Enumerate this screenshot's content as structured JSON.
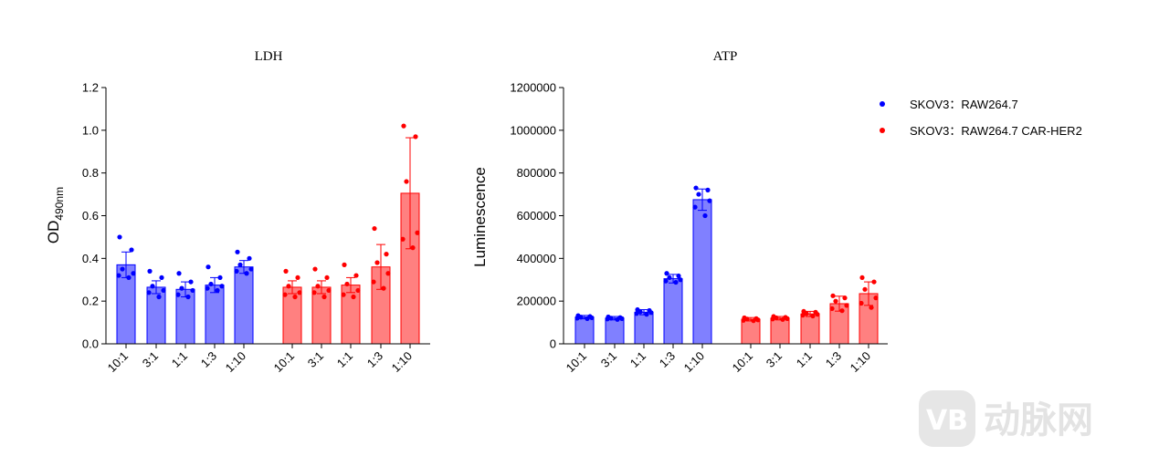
{
  "legend": [
    {
      "label": "SKOV3：RAW264.7",
      "color": "#0000ff"
    },
    {
      "label": "SKOV3：RAW264.7 CAR-HER2",
      "color": "#ff0000"
    }
  ],
  "watermark": {
    "text": "动脉网",
    "logo_text": "VB"
  },
  "chart_data": [
    {
      "type": "bar",
      "title": "LDH",
      "ylabel_main": "OD",
      "ylabel_sub": "490nm",
      "xlabel": "",
      "ylim": [
        0,
        1.2
      ],
      "yticks": [
        "0.0",
        "0.2",
        "0.4",
        "0.6",
        "0.8",
        "1.0",
        "1.2"
      ],
      "ytick_values": [
        0,
        0.2,
        0.4,
        0.6,
        0.8,
        1.0,
        1.2
      ],
      "categories": [
        "10:1",
        "3:1",
        "1:1",
        "1:3",
        "1:10"
      ],
      "series": [
        {
          "name": "SKOV3：RAW264.7",
          "bar_color": "#8080ff",
          "edge_color": "#0000ff",
          "values": [
            0.37,
            0.265,
            0.255,
            0.275,
            0.36
          ],
          "sd": [
            0.06,
            0.03,
            0.035,
            0.035,
            0.03
          ],
          "points": [
            [
              0.5,
              0.44,
              0.35,
              0.33,
              0.32,
              0.31
            ],
            [
              0.34,
              0.31,
              0.27,
              0.25,
              0.24,
              0.22
            ],
            [
              0.33,
              0.29,
              0.26,
              0.25,
              0.23,
              0.22
            ],
            [
              0.36,
              0.31,
              0.28,
              0.27,
              0.26,
              0.25
            ],
            [
              0.43,
              0.4,
              0.37,
              0.35,
              0.34,
              0.33
            ]
          ]
        },
        {
          "name": "SKOV3：RAW264.7 CAR-HER2",
          "bar_color": "#ff8080",
          "edge_color": "#ff0000",
          "values": [
            0.265,
            0.265,
            0.275,
            0.36,
            0.705
          ],
          "sd": [
            0.03,
            0.03,
            0.035,
            0.105,
            0.26
          ],
          "points": [
            [
              0.34,
              0.31,
              0.27,
              0.24,
              0.23,
              0.22
            ],
            [
              0.35,
              0.31,
              0.27,
              0.25,
              0.24,
              0.22
            ],
            [
              0.37,
              0.32,
              0.28,
              0.25,
              0.23,
              0.22
            ],
            [
              0.54,
              0.42,
              0.38,
              0.33,
              0.29,
              0.26
            ],
            [
              1.02,
              0.97,
              0.76,
              0.52,
              0.49,
              0.45
            ]
          ]
        }
      ]
    },
    {
      "type": "bar",
      "title": "ATP",
      "ylabel_main": "Luminescence",
      "ylabel_sub": "",
      "xlabel": "",
      "ylim": [
        0,
        1200000
      ],
      "yticks": [
        "0",
        "200000",
        "400000",
        "600000",
        "800000",
        "1000000",
        "1200000"
      ],
      "ytick_values": [
        0,
        200000,
        400000,
        600000,
        800000,
        1000000,
        1200000
      ],
      "categories": [
        "10:1",
        "3:1",
        "1:1",
        "1:3",
        "1:10"
      ],
      "series": [
        {
          "name": "SKOV3：RAW264.7",
          "bar_color": "#8080ff",
          "edge_color": "#0000ff",
          "values": [
            125000,
            120000,
            148000,
            305000,
            675000
          ],
          "sd": [
            8000,
            8000,
            12000,
            20000,
            50000
          ],
          "points": [
            [
              132000,
              128000,
              125000,
              122000,
              120000,
              118000
            ],
            [
              126000,
              123000,
              120000,
              118000,
              116000,
              114000
            ],
            [
              160000,
              156000,
              150000,
              146000,
              142000,
              138000
            ],
            [
              330000,
              318000,
              310000,
              300000,
              294000,
              288000
            ],
            [
              730000,
              720000,
              700000,
              670000,
              640000,
              600000
            ]
          ]
        },
        {
          "name": "SKOV3：RAW264.7 CAR-HER2",
          "bar_color": "#ff8080",
          "edge_color": "#ff0000",
          "values": [
            115000,
            120000,
            140000,
            188000,
            235000
          ],
          "sd": [
            8000,
            8000,
            12000,
            35000,
            55000
          ],
          "points": [
            [
              122000,
              118000,
              116000,
              112000,
              110000,
              108000
            ],
            [
              128000,
              124000,
              122000,
              118000,
              116000,
              114000
            ],
            [
              152000,
              148000,
              142000,
              138000,
              134000,
              130000
            ],
            [
              225000,
              215000,
              200000,
              180000,
              165000,
              155000
            ],
            [
              310000,
              290000,
              255000,
              215000,
              190000,
              170000
            ]
          ]
        }
      ]
    }
  ]
}
